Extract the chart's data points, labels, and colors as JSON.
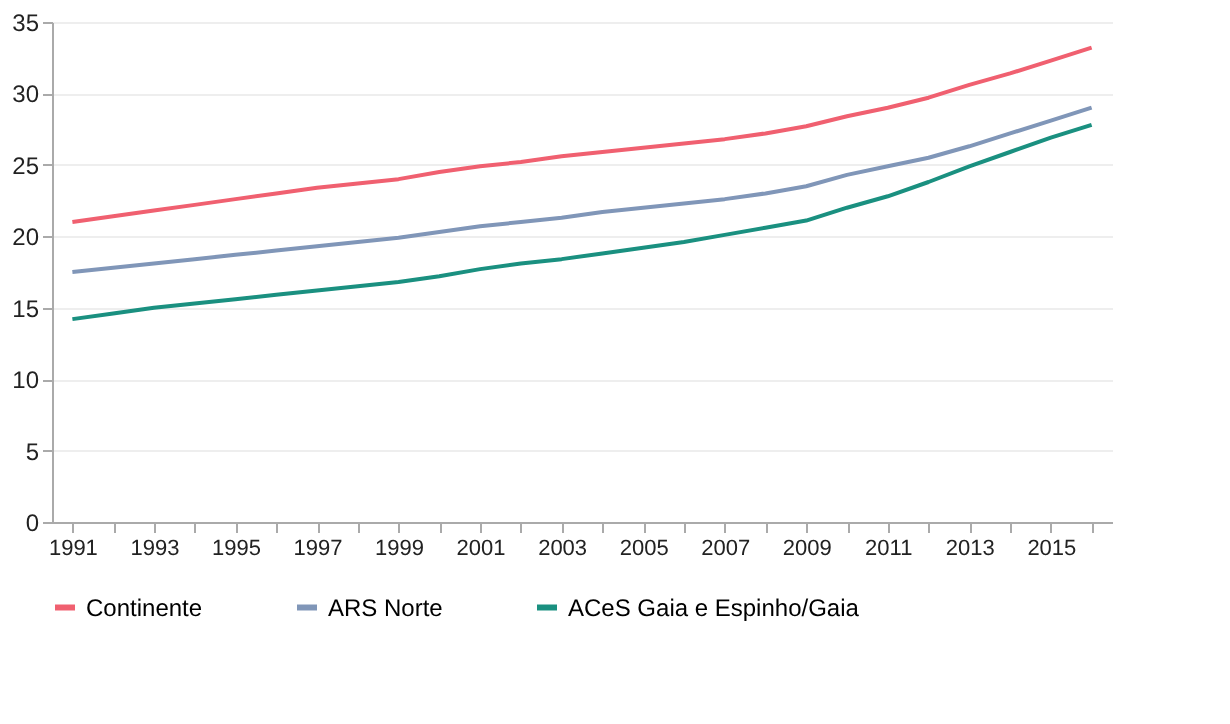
{
  "chart_data": {
    "type": "line",
    "categories": [
      "1991",
      null,
      "1993",
      null,
      "1995",
      null,
      "1997",
      null,
      "1999",
      null,
      "2001",
      null,
      "2003",
      null,
      "2005",
      null,
      "2007",
      null,
      "2009",
      null,
      "2011",
      null,
      "2013",
      null,
      "2015",
      null
    ],
    "series": [
      {
        "name": "Continente",
        "color": "#f06070",
        "values": [
          21.0,
          21.4,
          21.8,
          22.2,
          22.6,
          23.0,
          23.4,
          23.7,
          24.0,
          24.5,
          24.9,
          25.2,
          25.6,
          25.9,
          26.2,
          26.5,
          26.8,
          27.2,
          27.7,
          28.4,
          29.0,
          29.7,
          30.6,
          31.4,
          32.3,
          33.2
        ]
      },
      {
        "name": "ARS Norte",
        "color": "#8096b8",
        "values": [
          17.5,
          17.8,
          18.1,
          18.4,
          18.7,
          19.0,
          19.3,
          19.6,
          19.9,
          20.3,
          20.7,
          21.0,
          21.3,
          21.7,
          22.0,
          22.3,
          22.6,
          23.0,
          23.5,
          24.3,
          24.9,
          25.5,
          26.3,
          27.2,
          28.1,
          29.0
        ]
      },
      {
        "name": "ACeS Gaia e Espinho/Gaia",
        "color": "#1a9080",
        "values": [
          14.2,
          14.6,
          15.0,
          15.3,
          15.6,
          15.9,
          16.2,
          16.5,
          16.8,
          17.2,
          17.7,
          18.1,
          18.4,
          18.8,
          19.2,
          19.6,
          20.1,
          20.6,
          21.1,
          22.0,
          22.8,
          23.8,
          24.9,
          25.9,
          26.9,
          27.8
        ]
      }
    ],
    "ylim": [
      0,
      35
    ],
    "yticks": [
      0,
      5,
      10,
      15,
      20,
      25,
      30,
      35
    ],
    "grid": "y",
    "legend": "bottom"
  }
}
